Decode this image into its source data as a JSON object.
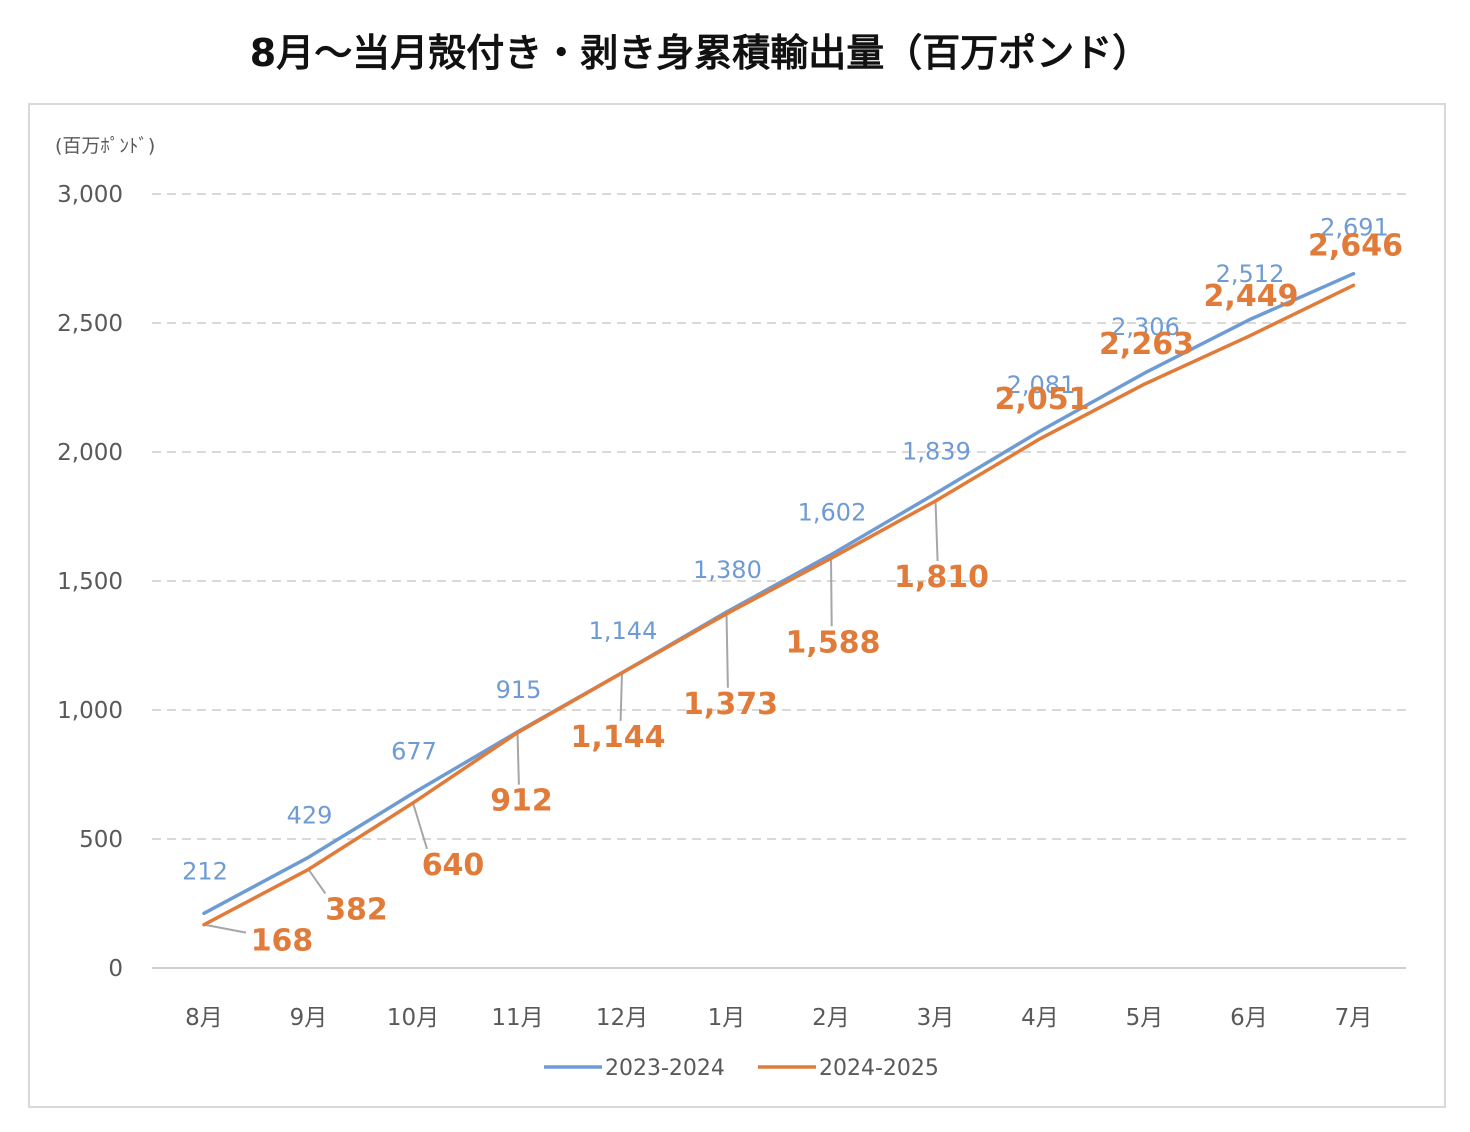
{
  "title": "8月〜当月殻付き・剥き身累積輸出量（百万ポンド）",
  "chart_data": {
    "type": "line",
    "unit_label": "(百万ﾎﾟﾝﾄﾞ)",
    "categories": [
      "8月",
      "9月",
      "10月",
      "11月",
      "12月",
      "1月",
      "2月",
      "3月",
      "4月",
      "5月",
      "6月",
      "7月"
    ],
    "ylim": [
      0,
      3000
    ],
    "yticks": [
      0,
      500,
      1000,
      1500,
      2000,
      2500,
      3000
    ],
    "ytick_labels": [
      "0",
      "500",
      "1,000",
      "1,500",
      "2,000",
      "2,500",
      "3,000"
    ],
    "grid": true,
    "legend_position": "bottom",
    "series": [
      {
        "name": "2023-2024",
        "color": "#6f9bd4",
        "values": [
          212,
          429,
          677,
          915,
          1144,
          1380,
          1602,
          1839,
          2081,
          2306,
          2512,
          2691
        ],
        "labels": [
          "212",
          "429",
          "677",
          "915",
          "1,144",
          "1,380",
          "1,602",
          "1,839",
          "2,081",
          "2,306",
          "2,512",
          "2,691"
        ]
      },
      {
        "name": "2024-2025",
        "color": "#e07b39",
        "values": [
          168,
          382,
          640,
          912,
          1144,
          1373,
          1588,
          1810,
          2051,
          2263,
          2449,
          2646
        ],
        "labels": [
          "168",
          "382",
          "640",
          "912",
          "1,144",
          "1,373",
          "1,588",
          "1,810",
          "2,051",
          "2,263",
          "2,449",
          "2,646"
        ]
      }
    ]
  }
}
